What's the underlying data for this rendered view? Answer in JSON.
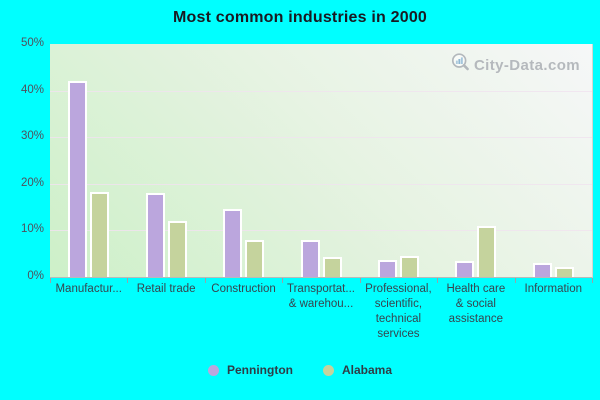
{
  "title": "Most common industries in 2000",
  "watermark": {
    "text": "City-Data.com",
    "icon": "magnifier-bar-chart-icon"
  },
  "colors": {
    "page_background": "#00ffff",
    "pennington_bar": "#bba6dd",
    "alabama_bar": "#c5d39d",
    "bar_border": "#ffffff",
    "gridline": "#f0e3ee",
    "axis_line": "#b9b9b9",
    "title_text": "#191a22",
    "axis_label_text": "#36454f",
    "watermark_text": "#b5b9bd"
  },
  "chart_data": {
    "type": "bar",
    "title": "Most common industries in 2000",
    "xlabel": "",
    "ylabel": "",
    "ylim": [
      0,
      50
    ],
    "y_ticks": [
      "0%",
      "10%",
      "20%",
      "30%",
      "40%",
      "50%"
    ],
    "grid": true,
    "legend_position": "bottom",
    "categories": [
      "Manufacturing",
      "Retail trade",
      "Construction",
      "Transportation & warehousing",
      "Professional, scientific, technical services",
      "Health care & social assistance",
      "Information"
    ],
    "category_display_labels": [
      [
        "Manufactur..."
      ],
      [
        "Retail trade"
      ],
      [
        "Construction"
      ],
      [
        "Transportat...",
        "& warehou..."
      ],
      [
        "Professional,",
        "scientific,",
        "technical",
        "services"
      ],
      [
        "Health care",
        "& social",
        "assistance"
      ],
      [
        "Information"
      ]
    ],
    "series": [
      {
        "name": "Pennington",
        "color": "#bba6dd",
        "values": [
          42,
          18,
          14.5,
          8,
          3.6,
          3.5,
          3
        ]
      },
      {
        "name": "Alabama",
        "color": "#c5d39d",
        "values": [
          18.3,
          12,
          8,
          4.2,
          4.5,
          11,
          2.2
        ]
      }
    ]
  }
}
